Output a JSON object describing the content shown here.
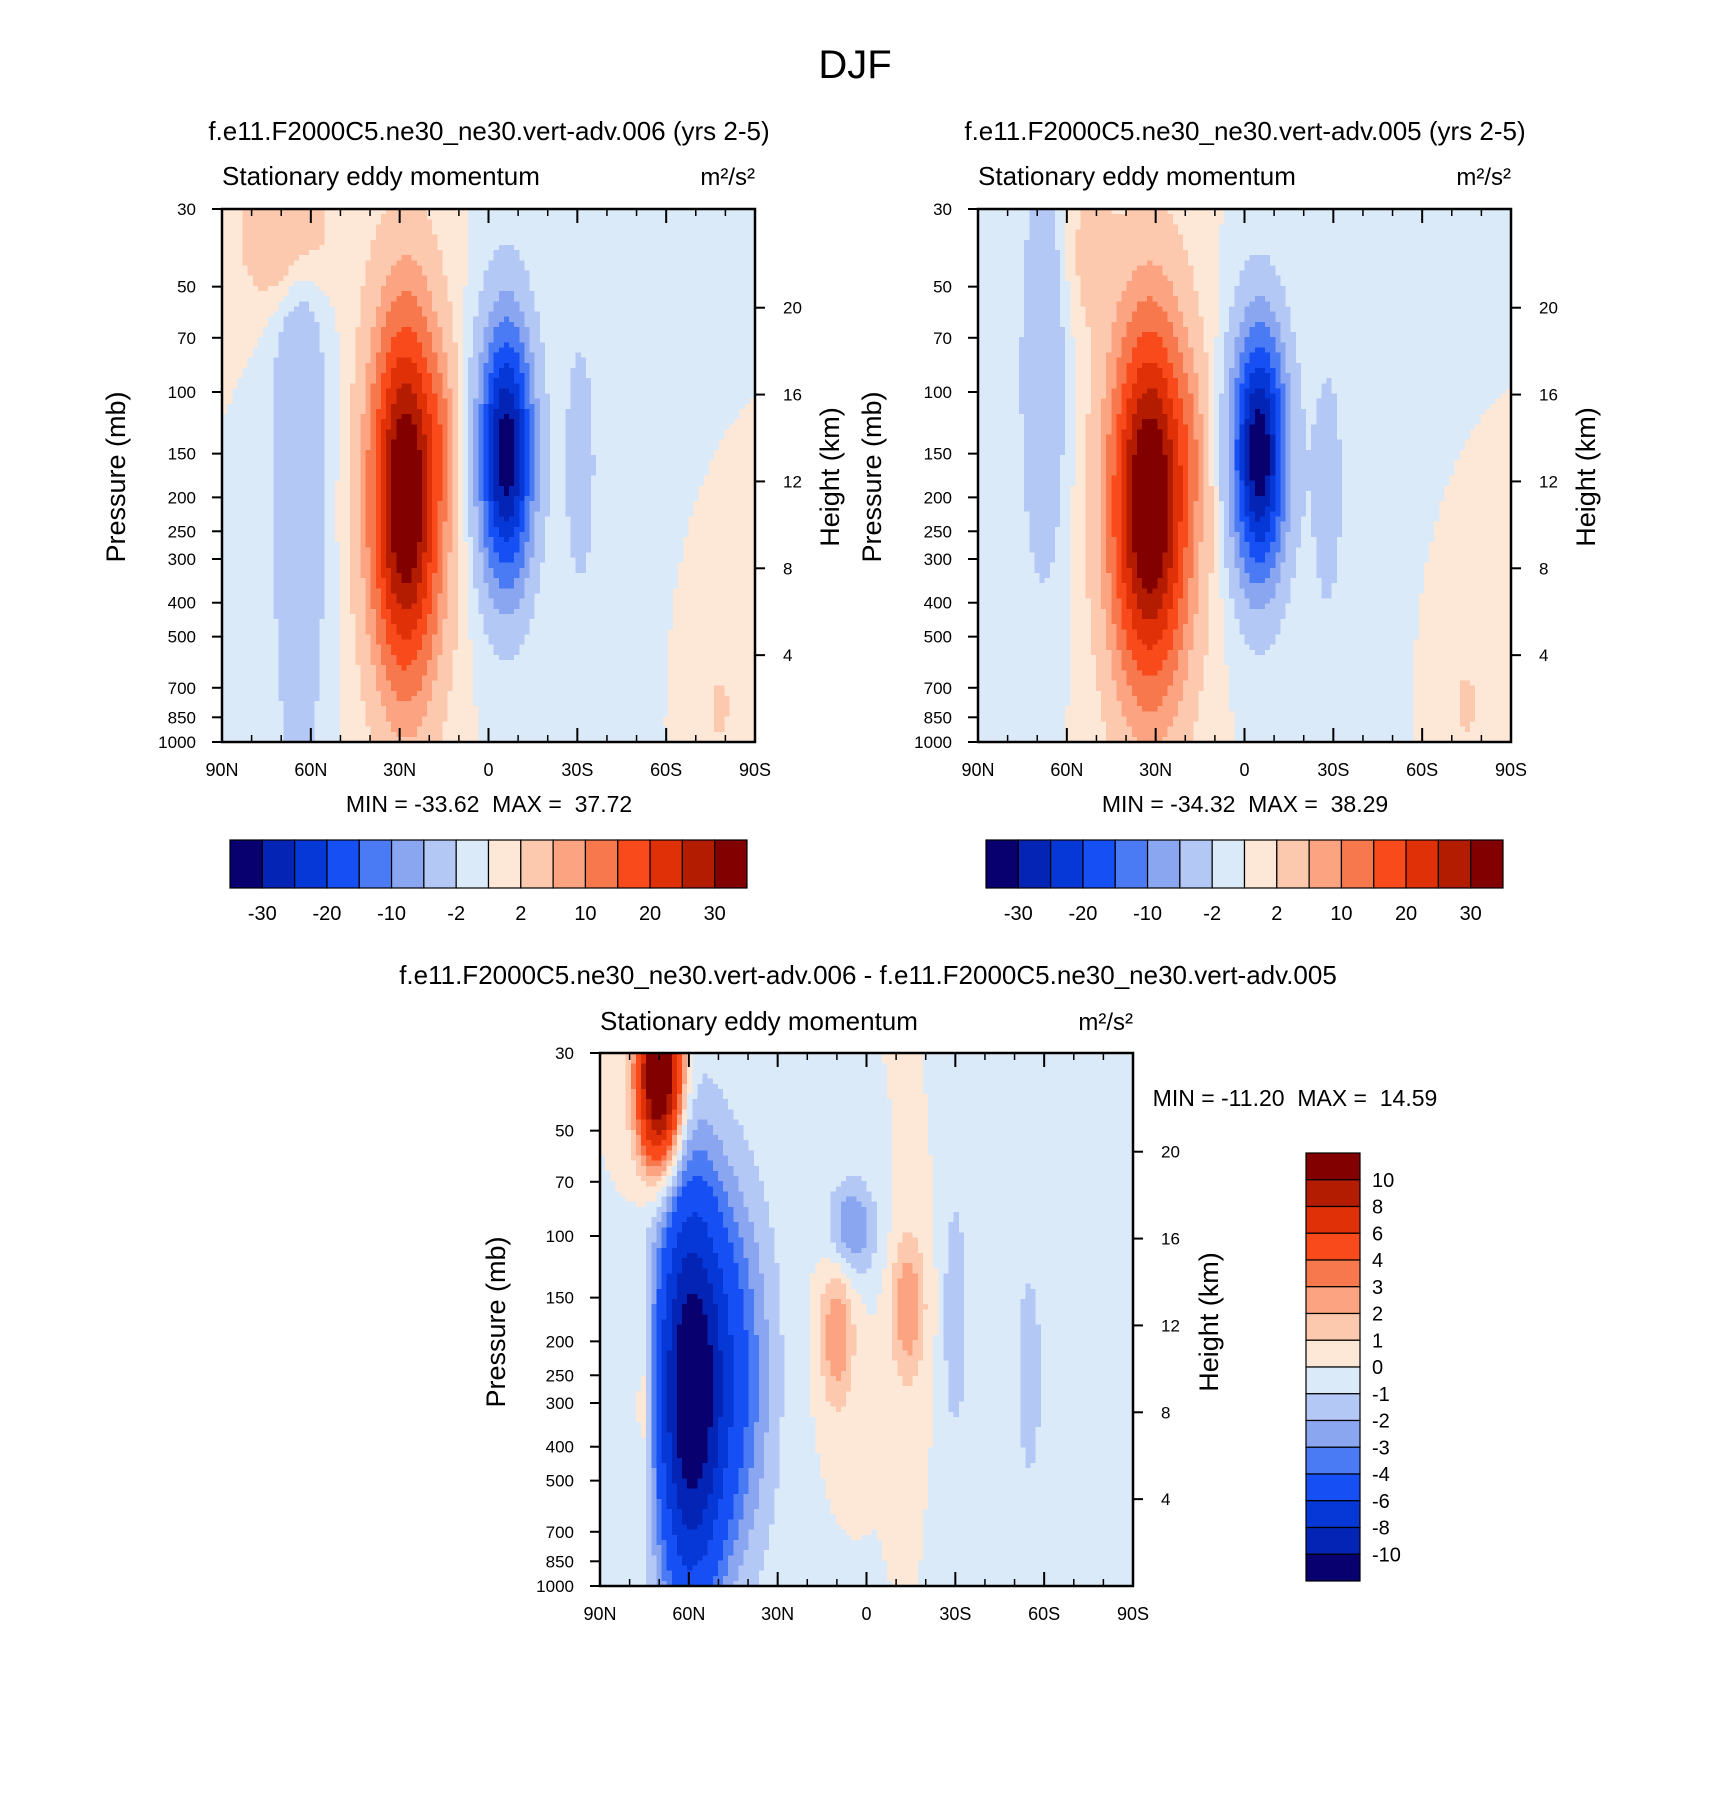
{
  "page": {
    "title": "DJF"
  },
  "colors": {
    "abs_levels_colors": [
      "#08006e",
      "#0324b4",
      "#0538d6",
      "#1650f4",
      "#4a7af4",
      "#8aa6f0",
      "#b4c8f6",
      "#daeaf8",
      "#fde8d8",
      "#fcc8ae",
      "#fca482",
      "#f6784c",
      "#f94a1c",
      "#e03008",
      "#b41c02",
      "#820000"
    ],
    "diff_levels_colors": [
      "#08006e",
      "#0324b4",
      "#0538d6",
      "#1650f4",
      "#4a7af4",
      "#8aa6f0",
      "#b4c8f6",
      "#daeaf8",
      "#fde8d8",
      "#fcc8ae",
      "#fca482",
      "#f6784c",
      "#f94a1c",
      "#e03008",
      "#b41c02",
      "#820000"
    ]
  },
  "chart_data": [
    {
      "type": "heatmap",
      "title": "f.e11.F2000C5.ne30_ne30.vert-adv.006 (yrs 2-5)",
      "subtitle_left": "Stationary eddy momentum",
      "subtitle_right": "m²/s²",
      "ylabel": "Pressure (mb)",
      "ylabel_right": "Height (km)",
      "x_ticks": [
        "90N",
        "60N",
        "30N",
        "0",
        "30S",
        "60S",
        "90S"
      ],
      "x_values": [
        90,
        60,
        30,
        0,
        -30,
        -60,
        -90
      ],
      "y_ticks": [
        30,
        50,
        70,
        100,
        150,
        200,
        250,
        300,
        400,
        500,
        700,
        850,
        1000
      ],
      "y_scale": "log",
      "ylim": [
        1000,
        30
      ],
      "y_right_ticks": [
        20,
        16,
        12,
        8,
        4
      ],
      "min": -33.62,
      "max": 37.72,
      "stats_text": "MIN = -33.62  MAX =  37.72",
      "colorbar": {
        "orientation": "horizontal",
        "labels": [
          "-30",
          "-20",
          "-10",
          "-2",
          "2",
          "10",
          "20",
          "30"
        ]
      },
      "features": [
        {
          "lat": 28,
          "p": 200,
          "value": 37.72,
          "sigma_lat": 8,
          "sigma_logp": 0.36
        },
        {
          "lat": -6,
          "p": 150,
          "value": -33.62,
          "sigma_lat": 6,
          "sigma_logp": 0.25
        },
        {
          "lat": 64,
          "p": 170,
          "value": -6,
          "sigma_lat": 6,
          "sigma_logp": 0.6
        },
        {
          "lat": 68,
          "p": 35,
          "value": 7,
          "sigma_lat": 10,
          "sigma_logp": 0.14
        },
        {
          "lat": 16,
          "p": 130,
          "value": 4,
          "sigma_lat": 3,
          "sigma_logp": 0.15
        },
        {
          "lat": -31,
          "p": 160,
          "value": -3,
          "sigma_lat": 5,
          "sigma_logp": 0.35
        },
        {
          "lat": -78,
          "p": 800,
          "value": 3,
          "sigma_lat": 3,
          "sigma_logp": 0.08
        }
      ]
    },
    {
      "type": "heatmap",
      "title": "f.e11.F2000C5.ne30_ne30.vert-adv.005 (yrs 2-5)",
      "subtitle_left": "Stationary eddy momentum",
      "subtitle_right": "m²/s²",
      "ylabel": "Pressure (mb)",
      "ylabel_right": "Height (km)",
      "x_ticks": [
        "90N",
        "60N",
        "30N",
        "0",
        "30S",
        "60S",
        "90S"
      ],
      "x_values": [
        90,
        60,
        30,
        0,
        -30,
        -60,
        -90
      ],
      "y_ticks": [
        30,
        50,
        70,
        100,
        150,
        200,
        250,
        300,
        400,
        500,
        700,
        850,
        1000
      ],
      "y_scale": "log",
      "ylim": [
        1000,
        30
      ],
      "y_right_ticks": [
        20,
        16,
        12,
        8,
        4
      ],
      "min": -34.32,
      "max": 38.29,
      "stats_text": "MIN = -34.32  MAX =  38.29",
      "colorbar": {
        "orientation": "horizontal",
        "labels": [
          "-30",
          "-20",
          "-10",
          "-2",
          "2",
          "10",
          "20",
          "30"
        ]
      },
      "features": [
        {
          "lat": 32,
          "p": 210,
          "value": 38.29,
          "sigma_lat": 9,
          "sigma_logp": 0.36
        },
        {
          "lat": -5,
          "p": 150,
          "value": -34.32,
          "sigma_lat": 6,
          "sigma_logp": 0.24
        },
        {
          "lat": 68,
          "p": 90,
          "value": -6,
          "sigma_lat": 5,
          "sigma_logp": 0.4
        },
        {
          "lat": 52,
          "p": 40,
          "value": 3,
          "sigma_lat": 6,
          "sigma_logp": 0.15
        },
        {
          "lat": 18,
          "p": 140,
          "value": 3,
          "sigma_lat": 3,
          "sigma_logp": 0.15
        },
        {
          "lat": -28,
          "p": 190,
          "value": -3,
          "sigma_lat": 5,
          "sigma_logp": 0.35
        },
        {
          "lat": -75,
          "p": 780,
          "value": 3,
          "sigma_lat": 3,
          "sigma_logp": 0.08
        }
      ]
    },
    {
      "type": "heatmap",
      "title": "f.e11.F2000C5.ne30_ne30.vert-adv.006 - f.e11.F2000C5.ne30_ne30.vert-adv.005",
      "subtitle_left": "Stationary eddy momentum",
      "subtitle_right": "m²/s²",
      "ylabel": "Pressure (mb)",
      "ylabel_right": "Height (km)",
      "x_ticks": [
        "90N",
        "60N",
        "30N",
        "0",
        "30S",
        "60S",
        "90S"
      ],
      "x_values": [
        90,
        60,
        30,
        0,
        -30,
        -60,
        -90
      ],
      "y_ticks": [
        30,
        50,
        70,
        100,
        150,
        200,
        250,
        300,
        400,
        500,
        700,
        850,
        1000
      ],
      "y_scale": "log",
      "ylim": [
        1000,
        30
      ],
      "y_right_ticks": [
        20,
        16,
        12,
        8,
        4
      ],
      "min": -11.2,
      "max": 14.59,
      "stats_text": "MIN = -11.20  MAX =  14.59",
      "colorbar": {
        "orientation": "vertical",
        "labels": [
          "10",
          "8",
          "6",
          "4",
          "3",
          "2",
          "1",
          "0",
          "-1",
          "-2",
          "-3",
          "-4",
          "-6",
          "-8",
          "-10"
        ]
      },
      "features": [
        {
          "lat": 70,
          "p": 35,
          "value": 14.59,
          "sigma_lat": 5,
          "sigma_logp": 0.17
        },
        {
          "lat": 60,
          "p": 280,
          "value": -11.2,
          "sigma_lat": 8,
          "sigma_logp": 0.42
        },
        {
          "lat": 45,
          "p": 250,
          "value": -4,
          "sigma_lat": 10,
          "sigma_logp": 0.4
        },
        {
          "lat": 10,
          "p": 190,
          "value": 3,
          "sigma_lat": 4,
          "sigma_logp": 0.15
        },
        {
          "lat": -14,
          "p": 160,
          "value": 3,
          "sigma_lat": 4,
          "sigma_logp": 0.15
        },
        {
          "lat": 5,
          "p": 95,
          "value": -3,
          "sigma_lat": 6,
          "sigma_logp": 0.1
        },
        {
          "lat": 75,
          "p": 300,
          "value": 2,
          "sigma_lat": 2,
          "sigma_logp": 0.2
        },
        {
          "lat": -30,
          "p": 170,
          "value": -2,
          "sigma_lat": 3,
          "sigma_logp": 0.25
        },
        {
          "lat": -55,
          "p": 250,
          "value": -1.5,
          "sigma_lat": 4,
          "sigma_logp": 0.3
        }
      ]
    }
  ]
}
